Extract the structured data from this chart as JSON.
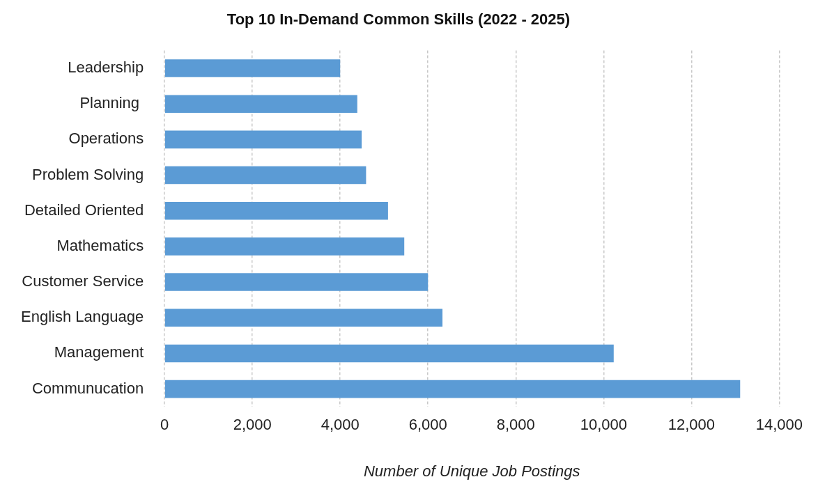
{
  "chart_data": {
    "type": "bar",
    "orientation": "horizontal",
    "title": "Top 10 In-Demand Common Skills (2022 - 2025)",
    "xlabel": "Number of Unique Job Postings",
    "categories": [
      "Leadership",
      "Planning ",
      "Operations",
      "Problem Solving",
      "Detailed Oriented",
      "Mathematics",
      "Customer Service",
      "English Language",
      "Management",
      "Communucation"
    ],
    "values": [
      4000,
      4390,
      4490,
      4590,
      5090,
      5460,
      6000,
      6330,
      10230,
      13110
    ],
    "color": "#5b9bd5",
    "xlim": [
      0,
      14000
    ],
    "xticks": [
      0,
      {
        "value": 2000,
        "label": "2,000"
      },
      {
        "value": 4000,
        "label": "4,000"
      },
      {
        "value": 6000,
        "label": "6,000"
      },
      {
        "value": 8000,
        "label": "8,000"
      },
      {
        "value": 10000,
        "label": "10,000"
      },
      {
        "value": 12000,
        "label": "12,000"
      },
      {
        "value": 14000,
        "label": "14,000"
      }
    ],
    "grid": "x",
    "legend": false
  }
}
